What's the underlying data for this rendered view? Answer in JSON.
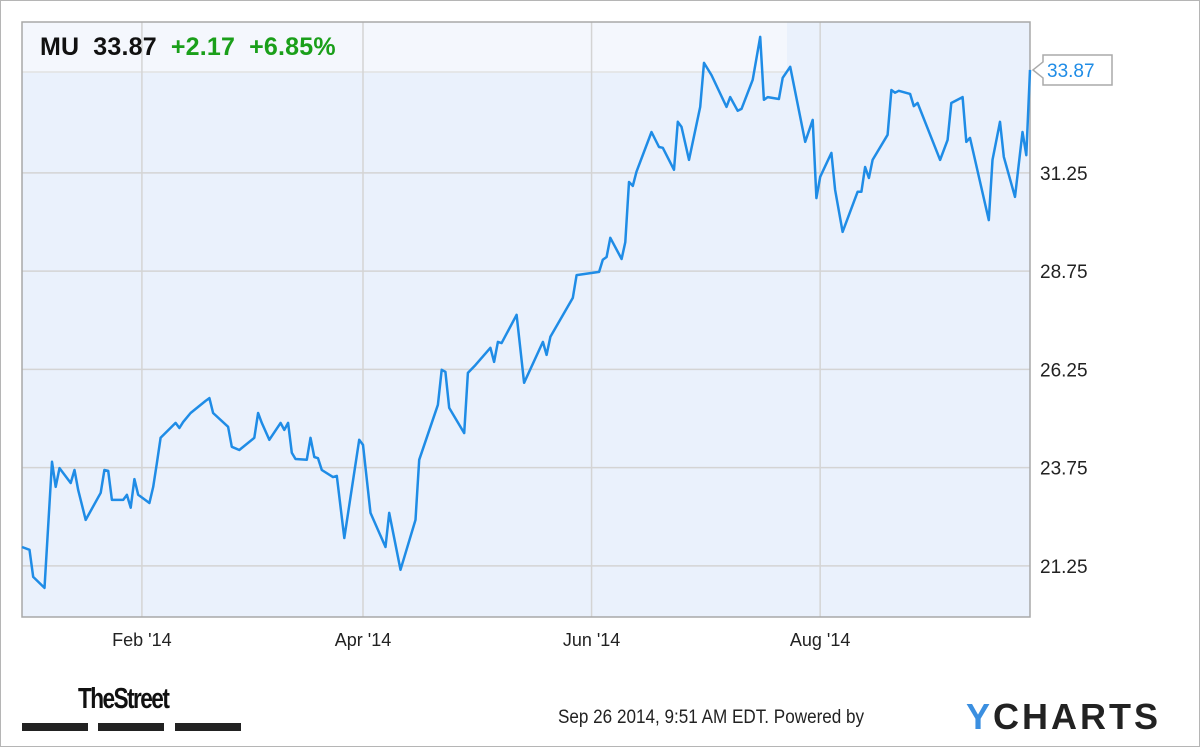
{
  "header": {
    "symbol": "MU",
    "price": "33.87",
    "change": "+2.17",
    "change_pct": "+6.85%"
  },
  "colors": {
    "line": "#1f8ce6",
    "positive": "#1a9f1a",
    "plot_bg": "#eaf1fc",
    "grid": "#d4d4d4"
  },
  "footer": {
    "timestamp": "Sep 26 2014, 9:51 AM EDT.",
    "powered_by": "Powered by",
    "brand": "YCHARTS",
    "publisher_logo": "TheStreet"
  },
  "chart_data": {
    "type": "line",
    "title": "",
    "xlabel": "",
    "ylabel": "",
    "grid": true,
    "xlim": [
      "2013-12-31",
      "2014-09-26"
    ],
    "ylim": [
      19.95,
      35.09
    ],
    "x_ticks": [
      {
        "date": "2014-02-01",
        "label": "Feb '14"
      },
      {
        "date": "2014-04-01",
        "label": "Apr '14"
      },
      {
        "date": "2014-06-01",
        "label": "Jun '14"
      },
      {
        "date": "2014-08-01",
        "label": "Aug '14"
      }
    ],
    "y_ticks": [
      {
        "value": 21.25,
        "label": "21.25"
      },
      {
        "value": 23.75,
        "label": "23.75"
      },
      {
        "value": 26.25,
        "label": "26.25"
      },
      {
        "value": 28.75,
        "label": "28.75"
      },
      {
        "value": 31.25,
        "label": "31.25"
      }
    ],
    "last_value_label": "33.87",
    "series": [
      {
        "points": [
          [
            "2013-12-31",
            21.73
          ],
          [
            "2014-01-02",
            21.66
          ],
          [
            "2014-01-03",
            20.97
          ],
          [
            "2014-01-06",
            20.69
          ],
          [
            "2014-01-08",
            23.9
          ],
          [
            "2014-01-09",
            23.26
          ],
          [
            "2014-01-10",
            23.74
          ],
          [
            "2014-01-13",
            23.36
          ],
          [
            "2014-01-14",
            23.69
          ],
          [
            "2014-01-15",
            23.18
          ],
          [
            "2014-01-17",
            22.42
          ],
          [
            "2014-01-21",
            23.11
          ],
          [
            "2014-01-22",
            23.69
          ],
          [
            "2014-01-23",
            23.67
          ],
          [
            "2014-01-24",
            22.93
          ],
          [
            "2014-01-27",
            22.93
          ],
          [
            "2014-01-28",
            23.06
          ],
          [
            "2014-01-29",
            22.73
          ],
          [
            "2014-01-30",
            23.46
          ],
          [
            "2014-01-31",
            23.06
          ],
          [
            "2014-02-03",
            22.85
          ],
          [
            "2014-02-04",
            23.26
          ],
          [
            "2014-02-05",
            23.87
          ],
          [
            "2014-02-06",
            24.51
          ],
          [
            "2014-02-10",
            24.89
          ],
          [
            "2014-02-11",
            24.76
          ],
          [
            "2014-02-12",
            24.91
          ],
          [
            "2014-02-14",
            25.14
          ],
          [
            "2014-02-18",
            25.45
          ],
          [
            "2014-02-19",
            25.52
          ],
          [
            "2014-02-20",
            25.14
          ],
          [
            "2014-02-24",
            24.79
          ],
          [
            "2014-02-25",
            24.28
          ],
          [
            "2014-02-27",
            24.2
          ],
          [
            "2014-03-03",
            24.51
          ],
          [
            "2014-03-04",
            25.14
          ],
          [
            "2014-03-05",
            24.89
          ],
          [
            "2014-03-07",
            24.46
          ],
          [
            "2014-03-10",
            24.89
          ],
          [
            "2014-03-11",
            24.71
          ],
          [
            "2014-03-12",
            24.89
          ],
          [
            "2014-03-13",
            24.13
          ],
          [
            "2014-03-14",
            23.97
          ],
          [
            "2014-03-17",
            23.95
          ],
          [
            "2014-03-18",
            24.51
          ],
          [
            "2014-03-19",
            24.02
          ],
          [
            "2014-03-20",
            23.99
          ],
          [
            "2014-03-21",
            23.69
          ],
          [
            "2014-03-24",
            23.51
          ],
          [
            "2014-03-25",
            23.54
          ],
          [
            "2014-03-27",
            21.96
          ],
          [
            "2014-03-31",
            24.46
          ],
          [
            "2014-04-01",
            24.33
          ],
          [
            "2014-04-03",
            22.6
          ],
          [
            "2014-04-07",
            21.73
          ],
          [
            "2014-04-08",
            22.6
          ],
          [
            "2014-04-11",
            21.15
          ],
          [
            "2014-04-15",
            22.42
          ],
          [
            "2014-04-16",
            23.95
          ],
          [
            "2014-04-21",
            25.35
          ],
          [
            "2014-04-22",
            26.24
          ],
          [
            "2014-04-23",
            26.19
          ],
          [
            "2014-04-24",
            25.27
          ],
          [
            "2014-04-28",
            24.63
          ],
          [
            "2014-04-29",
            26.16
          ],
          [
            "2014-05-01",
            26.36
          ],
          [
            "2014-05-05",
            26.8
          ],
          [
            "2014-05-06",
            26.44
          ],
          [
            "2014-05-07",
            26.95
          ],
          [
            "2014-05-08",
            26.92
          ],
          [
            "2014-05-12",
            27.64
          ],
          [
            "2014-05-14",
            25.91
          ],
          [
            "2014-05-19",
            26.95
          ],
          [
            "2014-05-20",
            26.62
          ],
          [
            "2014-05-21",
            27.08
          ],
          [
            "2014-05-27",
            28.07
          ],
          [
            "2014-05-28",
            28.65
          ],
          [
            "2014-06-03",
            28.73
          ],
          [
            "2014-06-04",
            29.04
          ],
          [
            "2014-06-05",
            29.11
          ],
          [
            "2014-06-06",
            29.6
          ],
          [
            "2014-06-09",
            29.06
          ],
          [
            "2014-06-10",
            29.49
          ],
          [
            "2014-06-11",
            31.02
          ],
          [
            "2014-06-12",
            30.92
          ],
          [
            "2014-06-13",
            31.28
          ],
          [
            "2014-06-17",
            32.29
          ],
          [
            "2014-06-19",
            31.91
          ],
          [
            "2014-06-20",
            31.89
          ],
          [
            "2014-06-23",
            31.33
          ],
          [
            "2014-06-24",
            32.55
          ],
          [
            "2014-06-25",
            32.42
          ],
          [
            "2014-06-27",
            31.58
          ],
          [
            "2014-06-30",
            32.93
          ],
          [
            "2014-07-01",
            34.05
          ],
          [
            "2014-07-03",
            33.74
          ],
          [
            "2014-07-07",
            32.93
          ],
          [
            "2014-07-08",
            33.18
          ],
          [
            "2014-07-10",
            32.83
          ],
          [
            "2014-07-11",
            32.88
          ],
          [
            "2014-07-14",
            33.62
          ],
          [
            "2014-07-16",
            34.71
          ],
          [
            "2014-07-17",
            33.11
          ],
          [
            "2014-07-18",
            33.18
          ],
          [
            "2014-07-21",
            33.13
          ],
          [
            "2014-07-22",
            33.67
          ],
          [
            "2014-07-24",
            33.95
          ],
          [
            "2014-07-28",
            32.04
          ],
          [
            "2014-07-30",
            32.6
          ],
          [
            "2014-07-31",
            30.61
          ],
          [
            "2014-08-01",
            31.15
          ],
          [
            "2014-08-04",
            31.76
          ],
          [
            "2014-08-05",
            30.82
          ],
          [
            "2014-08-07",
            29.75
          ],
          [
            "2014-08-11",
            30.77
          ],
          [
            "2014-08-12",
            30.77
          ],
          [
            "2014-08-13",
            31.4
          ],
          [
            "2014-08-14",
            31.12
          ],
          [
            "2014-08-15",
            31.58
          ],
          [
            "2014-08-19",
            32.22
          ],
          [
            "2014-08-20",
            33.36
          ],
          [
            "2014-08-21",
            33.29
          ],
          [
            "2014-08-22",
            33.34
          ],
          [
            "2014-08-25",
            33.26
          ],
          [
            "2014-08-26",
            32.95
          ],
          [
            "2014-08-27",
            33.03
          ],
          [
            "2014-09-02",
            31.58
          ],
          [
            "2014-09-04",
            32.09
          ],
          [
            "2014-09-05",
            33.03
          ],
          [
            "2014-09-08",
            33.18
          ],
          [
            "2014-09-09",
            32.04
          ],
          [
            "2014-09-10",
            32.14
          ],
          [
            "2014-09-15",
            30.05
          ],
          [
            "2014-09-16",
            31.58
          ],
          [
            "2014-09-18",
            32.55
          ],
          [
            "2014-09-19",
            31.66
          ],
          [
            "2014-09-22",
            30.64
          ],
          [
            "2014-09-24",
            32.29
          ],
          [
            "2014-09-25",
            31.7
          ],
          [
            "2014-09-26",
            33.87
          ]
        ]
      }
    ]
  }
}
